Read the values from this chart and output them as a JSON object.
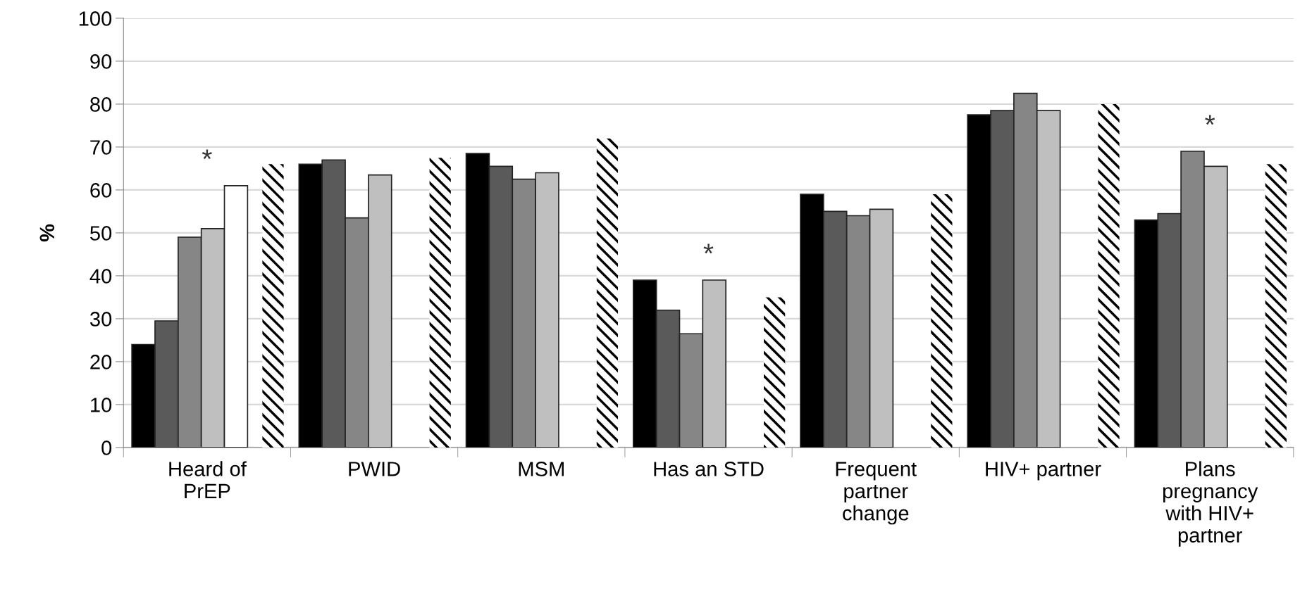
{
  "chart_data": {
    "type": "bar",
    "ylabel": "%",
    "categories": [
      "Heard of\nPrEP",
      "PWID",
      "MSM",
      "Has an STD",
      "Frequent\npartner\nchange",
      "HIV+ partner",
      "Plans\npregnancy\nwith HIV+\npartner"
    ],
    "series": [
      {
        "color": "#000000",
        "values": [
          24,
          66,
          68.5,
          39,
          59,
          77.5,
          53
        ]
      },
      {
        "color": "#5a5a5a",
        "values": [
          29.5,
          67,
          65.5,
          32,
          55,
          78.5,
          54.5
        ]
      },
      {
        "color": "#868686",
        "values": [
          49,
          53.5,
          62.5,
          26.5,
          54,
          82.5,
          69
        ]
      },
      {
        "color": "#bfbfbf",
        "values": [
          51,
          63.5,
          64,
          39,
          55.5,
          78.5,
          65.5
        ]
      },
      {
        "color": "#ffffff",
        "values": [
          61,
          null,
          null,
          null,
          null,
          null,
          null
        ]
      },
      {
        "color": "#000000",
        "values": [
          66,
          67.5,
          72,
          35,
          59,
          80,
          66
        ]
      }
    ],
    "ylim": [
      0,
      100
    ],
    "yticks": [
      0,
      10,
      20,
      30,
      40,
      50,
      60,
      70,
      80,
      90,
      100
    ],
    "grid": "y",
    "annotations": [
      "*",
      "*",
      "*"
    ]
  }
}
